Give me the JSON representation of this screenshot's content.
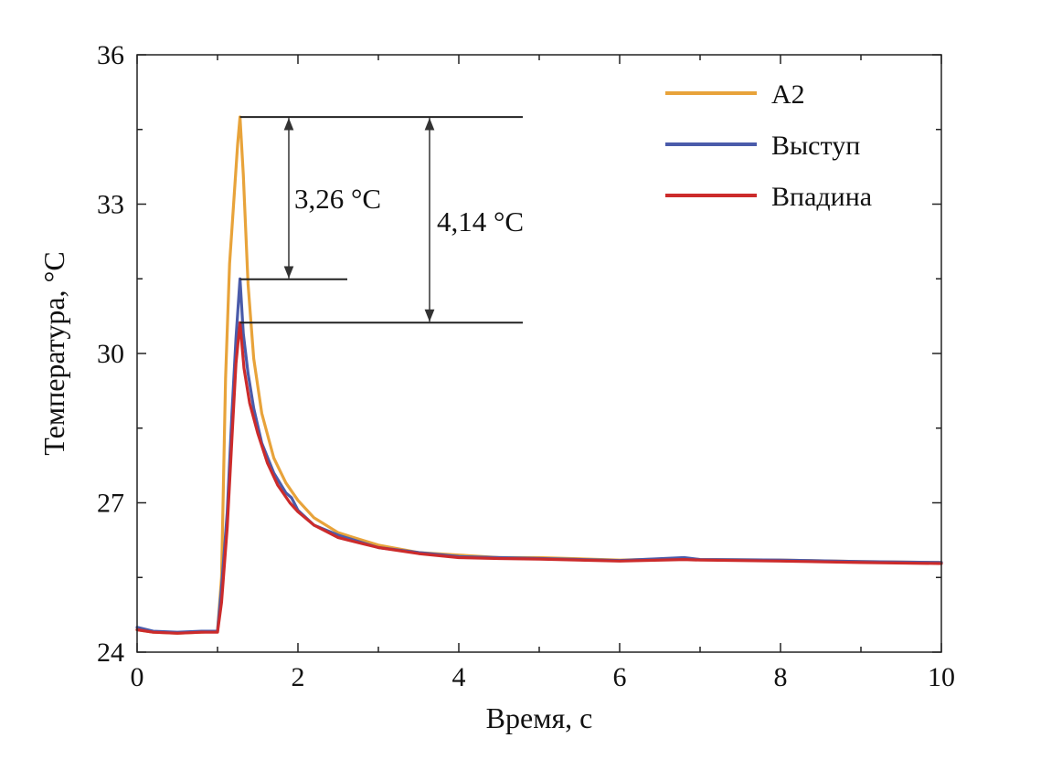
{
  "chart_data": {
    "type": "line",
    "title": "",
    "xlabel": "Время, с",
    "ylabel": "Температура, °C",
    "xlim": [
      0,
      10
    ],
    "ylim": [
      24,
      36
    ],
    "xticks": [
      0,
      2,
      4,
      6,
      8,
      10
    ],
    "yticks": [
      24,
      27,
      30,
      33,
      36
    ],
    "grid": false,
    "legend_position": "top-right",
    "series": [
      {
        "name": "A2",
        "color": "#E8A33A",
        "points": [
          [
            0,
            24.45
          ],
          [
            0.2,
            24.4
          ],
          [
            0.5,
            24.38
          ],
          [
            0.8,
            24.4
          ],
          [
            1.0,
            24.42
          ],
          [
            1.05,
            25.5
          ],
          [
            1.1,
            29.5
          ],
          [
            1.15,
            31.8
          ],
          [
            1.2,
            33.0
          ],
          [
            1.25,
            34.2
          ],
          [
            1.28,
            34.75
          ],
          [
            1.32,
            33.6
          ],
          [
            1.38,
            31.4
          ],
          [
            1.45,
            29.9
          ],
          [
            1.55,
            28.8
          ],
          [
            1.7,
            27.9
          ],
          [
            1.85,
            27.4
          ],
          [
            2.0,
            27.05
          ],
          [
            2.2,
            26.7
          ],
          [
            2.5,
            26.4
          ],
          [
            2.8,
            26.25
          ],
          [
            3.0,
            26.15
          ],
          [
            3.5,
            26.0
          ],
          [
            4.0,
            25.95
          ],
          [
            4.5,
            25.9
          ],
          [
            5.0,
            25.9
          ],
          [
            6.0,
            25.85
          ],
          [
            6.8,
            25.88
          ],
          [
            7.0,
            25.86
          ],
          [
            8.0,
            25.85
          ],
          [
            9.0,
            25.82
          ],
          [
            10.0,
            25.8
          ]
        ]
      },
      {
        "name": "Выступ",
        "color": "#4A5BAA",
        "points": [
          [
            0,
            24.5
          ],
          [
            0.2,
            24.42
          ],
          [
            0.5,
            24.4
          ],
          [
            0.8,
            24.42
          ],
          [
            1.0,
            24.42
          ],
          [
            1.05,
            25.3
          ],
          [
            1.12,
            26.8
          ],
          [
            1.18,
            28.8
          ],
          [
            1.23,
            30.3
          ],
          [
            1.28,
            31.5
          ],
          [
            1.32,
            30.4
          ],
          [
            1.38,
            29.6
          ],
          [
            1.45,
            28.9
          ],
          [
            1.55,
            28.2
          ],
          [
            1.7,
            27.6
          ],
          [
            1.85,
            27.2
          ],
          [
            1.92,
            27.1
          ],
          [
            2.0,
            26.85
          ],
          [
            2.2,
            26.55
          ],
          [
            2.5,
            26.35
          ],
          [
            2.8,
            26.2
          ],
          [
            3.0,
            26.1
          ],
          [
            3.5,
            26.0
          ],
          [
            4.0,
            25.92
          ],
          [
            4.5,
            25.9
          ],
          [
            5.0,
            25.88
          ],
          [
            6.0,
            25.84
          ],
          [
            6.8,
            25.9
          ],
          [
            7.0,
            25.86
          ],
          [
            8.0,
            25.85
          ],
          [
            9.0,
            25.82
          ],
          [
            10.0,
            25.8
          ]
        ]
      },
      {
        "name": "Впадина",
        "color": "#CC2B2B",
        "points": [
          [
            0,
            24.45
          ],
          [
            0.2,
            24.4
          ],
          [
            0.5,
            24.38
          ],
          [
            0.8,
            24.4
          ],
          [
            1.0,
            24.4
          ],
          [
            1.05,
            25.0
          ],
          [
            1.12,
            26.5
          ],
          [
            1.18,
            28.3
          ],
          [
            1.23,
            29.8
          ],
          [
            1.28,
            30.62
          ],
          [
            1.33,
            29.7
          ],
          [
            1.4,
            29.0
          ],
          [
            1.5,
            28.4
          ],
          [
            1.62,
            27.8
          ],
          [
            1.75,
            27.35
          ],
          [
            1.9,
            27.0
          ],
          [
            2.0,
            26.82
          ],
          [
            2.2,
            26.55
          ],
          [
            2.5,
            26.3
          ],
          [
            2.8,
            26.18
          ],
          [
            3.0,
            26.1
          ],
          [
            3.5,
            25.98
          ],
          [
            4.0,
            25.9
          ],
          [
            4.5,
            25.88
          ],
          [
            5.0,
            25.87
          ],
          [
            6.0,
            25.83
          ],
          [
            6.8,
            25.86
          ],
          [
            7.0,
            25.85
          ],
          [
            8.0,
            25.83
          ],
          [
            9.0,
            25.8
          ],
          [
            10.0,
            25.78
          ]
        ]
      }
    ],
    "annotations": [
      {
        "label": "3,26 °C",
        "from": 34.75,
        "to": 31.49
      },
      {
        "label": "4,14 °C",
        "from": 34.75,
        "to": 30.62
      }
    ]
  }
}
